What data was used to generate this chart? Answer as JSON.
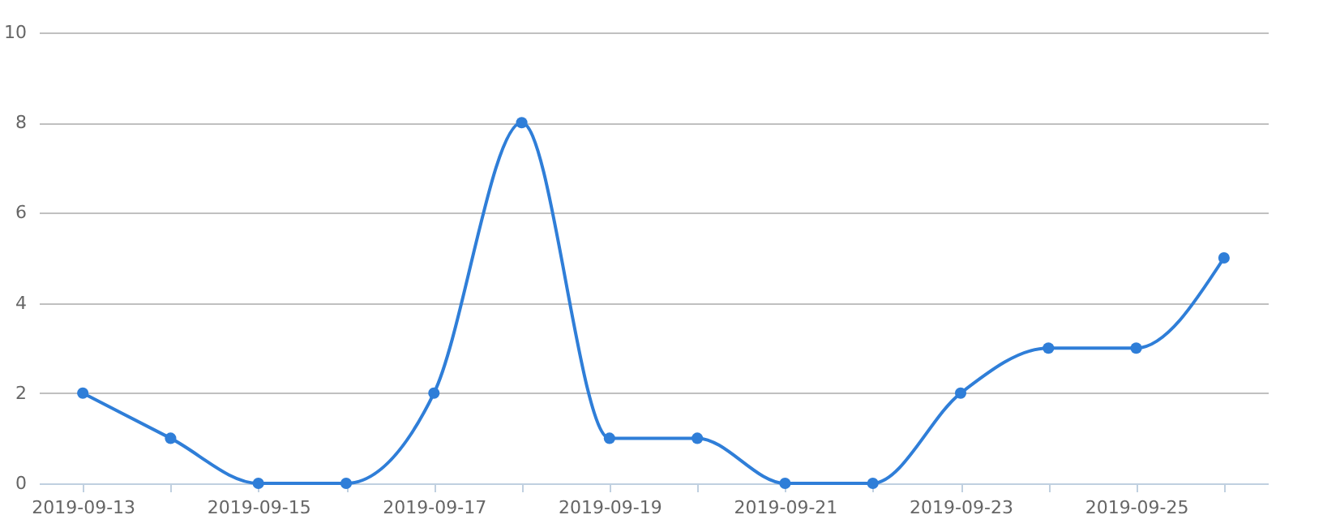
{
  "chart_data": {
    "type": "line",
    "categories": [
      "2019-09-13",
      null,
      "2019-09-15",
      null,
      "2019-09-17",
      null,
      "2019-09-19",
      null,
      "2019-09-21",
      null,
      "2019-09-23",
      null,
      "2019-09-25",
      null
    ],
    "series": [
      {
        "color": "#2f7ed8",
        "values": [
          2,
          1,
          0,
          0,
          2,
          8,
          1,
          1,
          0,
          0,
          2,
          3,
          3,
          5
        ]
      }
    ],
    "ylim": [
      0,
      10
    ],
    "yticks": [
      0,
      2,
      4,
      6,
      8,
      10
    ],
    "grid": "y",
    "marker": "circle",
    "line_style": "solid"
  }
}
